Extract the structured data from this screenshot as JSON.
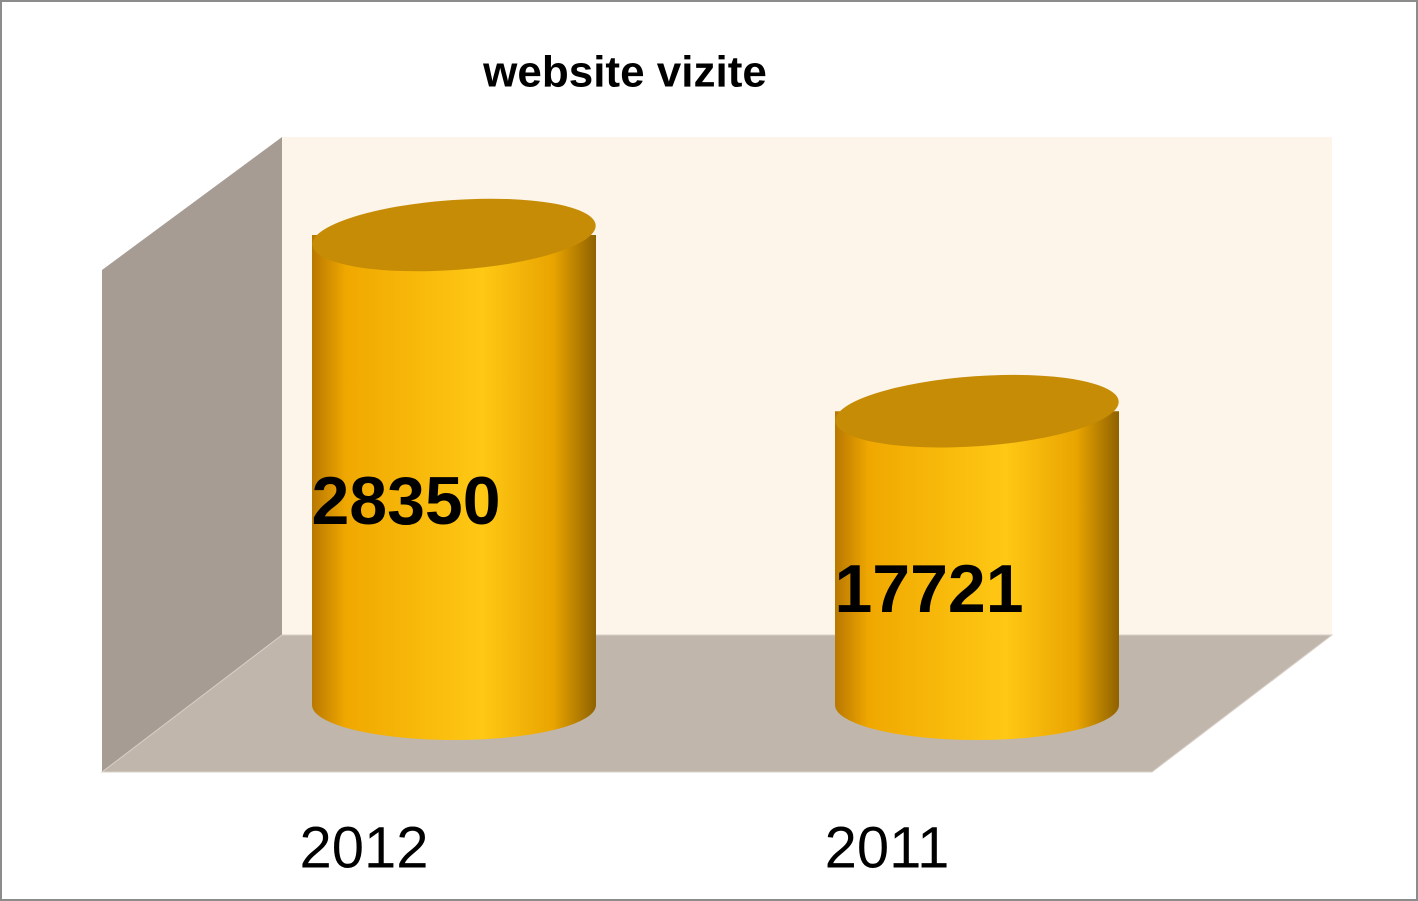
{
  "chart_data": {
    "type": "bar3d",
    "title": "website vizite",
    "categories": [
      "2012",
      "2011"
    ],
    "values": [
      28350,
      17721
    ],
    "color": "#ffc20e"
  }
}
